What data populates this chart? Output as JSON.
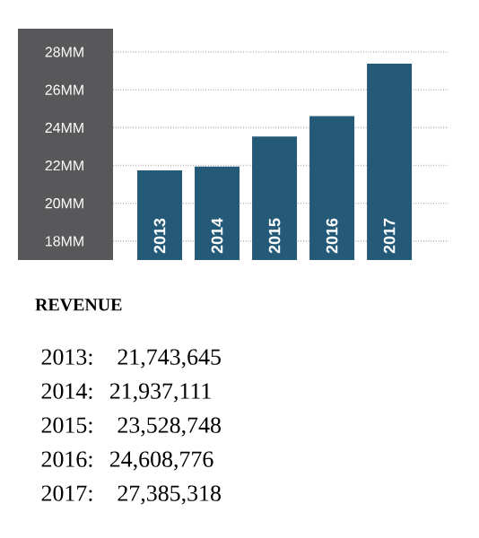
{
  "chart_data": {
    "type": "bar",
    "title": "REVENUE",
    "categories": [
      "2013",
      "2014",
      "2015",
      "2016",
      "2017"
    ],
    "values": [
      21.743645,
      21.937111,
      23.528748,
      24.608776,
      27.385318
    ],
    "color": "#245a78",
    "ylim": [
      17,
      28
    ],
    "yticks": [
      {
        "value": 18,
        "label": "18MM"
      },
      {
        "value": 20,
        "label": "20MM"
      },
      {
        "value": 22,
        "label": "22MM"
      },
      {
        "value": 24,
        "label": "24MM"
      },
      {
        "value": 26,
        "label": "26MM"
      },
      {
        "value": 28,
        "label": "28MM"
      }
    ],
    "grid": "y",
    "annotations": [
      "2013:   21,743,645",
      "2014:  21,937,111",
      "2015:   23,528,748",
      "2016:  24,608,776",
      "2017:   27,385,318"
    ]
  }
}
